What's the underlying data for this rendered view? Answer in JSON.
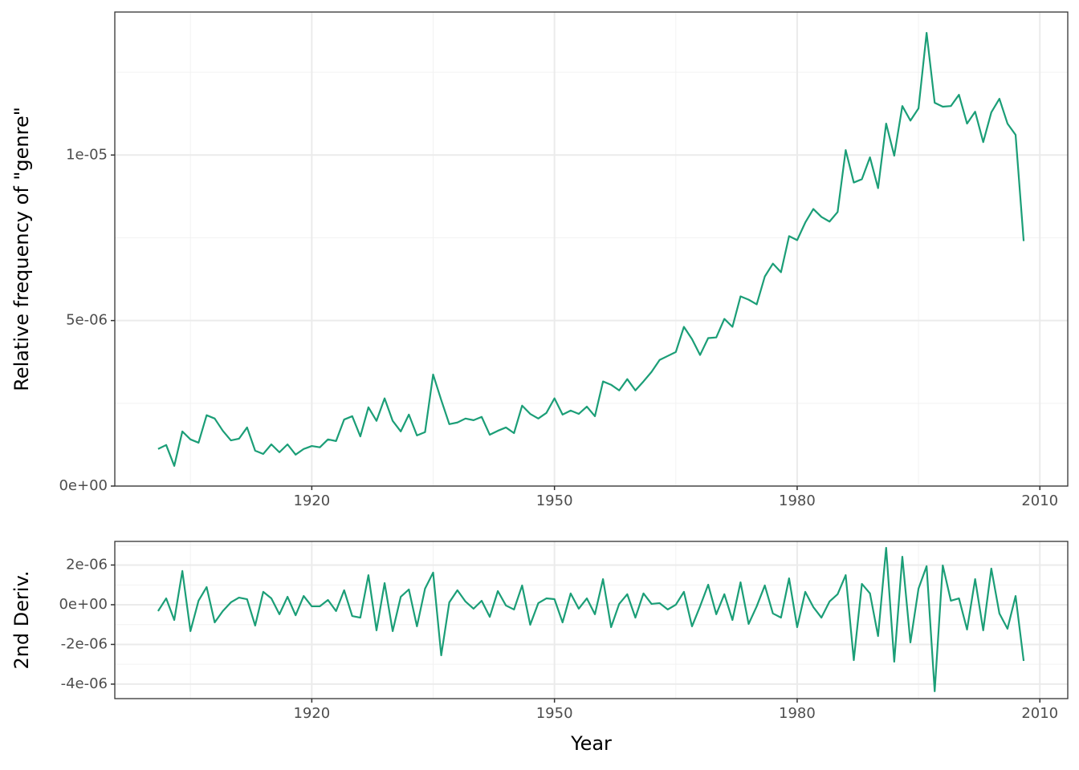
{
  "chart_data": [
    {
      "type": "line",
      "ylabel": "Relative frequency of \"genre\"",
      "x": [
        1901,
        1902,
        1903,
        1904,
        1905,
        1906,
        1907,
        1908,
        1909,
        1910,
        1911,
        1912,
        1913,
        1914,
        1915,
        1916,
        1917,
        1918,
        1919,
        1920,
        1921,
        1922,
        1923,
        1924,
        1925,
        1926,
        1927,
        1928,
        1929,
        1930,
        1931,
        1932,
        1933,
        1934,
        1935,
        1936,
        1937,
        1938,
        1939,
        1940,
        1941,
        1942,
        1943,
        1944,
        1945,
        1946,
        1947,
        1948,
        1949,
        1950,
        1951,
        1952,
        1953,
        1954,
        1955,
        1956,
        1957,
        1958,
        1959,
        1960,
        1961,
        1962,
        1963,
        1964,
        1965,
        1966,
        1967,
        1968,
        1969,
        1970,
        1971,
        1972,
        1973,
        1974,
        1975,
        1976,
        1977,
        1978,
        1979,
        1980,
        1981,
        1982,
        1983,
        1984,
        1985,
        1986,
        1987,
        1988,
        1989,
        1990,
        1991,
        1992,
        1993,
        1994,
        1995,
        1996,
        1997,
        1998,
        1999,
        2000,
        2001,
        2002,
        2003,
        2004,
        2005,
        2006,
        2007,
        2008
      ],
      "series": [
        {
          "color": "#1b9e77",
          "values": [
            1.12e-06,
            1.24e-06,
            6.1e-07,
            1.65e-06,
            1.41e-06,
            1.31e-06,
            2.14e-06,
            2.04e-06,
            1.67e-06,
            1.38e-06,
            1.43e-06,
            1.77e-06,
            1.07e-06,
            9.7e-07,
            1.26e-06,
            1.02e-06,
            1.26e-06,
            9.5e-07,
            1.12e-06,
            1.21e-06,
            1.17e-06,
            1.41e-06,
            1.36e-06,
            2.01e-06,
            2.11e-06,
            1.5e-06,
            2.38e-06,
            1.97e-06,
            2.65e-06,
            1.97e-06,
            1.65e-06,
            2.16e-06,
            1.53e-06,
            1.63e-06,
            3.37e-06,
            2.6e-06,
            1.87e-06,
            1.92e-06,
            2.04e-06,
            1.99e-06,
            2.09e-06,
            1.55e-06,
            1.67e-06,
            1.77e-06,
            1.6e-06,
            2.43e-06,
            2.18e-06,
            2.04e-06,
            2.21e-06,
            2.65e-06,
            2.16e-06,
            2.28e-06,
            2.18e-06,
            2.4e-06,
            2.11e-06,
            3.16e-06,
            3.06e-06,
            2.89e-06,
            3.23e-06,
            2.89e-06,
            3.16e-06,
            3.45e-06,
            3.81e-06,
            3.93e-06,
            4.05e-06,
            4.81e-06,
            4.44e-06,
            3.96e-06,
            4.47e-06,
            4.49e-06,
            5.05e-06,
            4.81e-06,
            5.73e-06,
            5.63e-06,
            5.49e-06,
            6.33e-06,
            6.72e-06,
            6.46e-06,
            7.55e-06,
            7.43e-06,
            7.96e-06,
            8.37e-06,
            8.13e-06,
            7.99e-06,
            8.28e-06,
            1.015e-05,
            9.17e-06,
            9.27e-06,
            9.93e-06,
            9e-06,
            1.095e-05,
            9.98e-06,
            1.148e-05,
            1.104e-05,
            1.141e-05,
            1.369e-05,
            1.158e-05,
            1.146e-05,
            1.148e-05,
            1.182e-05,
            1.095e-05,
            1.131e-05,
            1.039e-05,
            1.129e-05,
            1.17e-05,
            1.095e-05,
            1.061e-05,
            7.4e-06
          ]
        }
      ],
      "xlim": [
        1895.65,
        2013.45
      ],
      "xticks": [
        1920,
        1950,
        1980,
        2010
      ],
      "xminor": [
        1905,
        1935,
        1965,
        1995
      ],
      "ylim": [
        0,
        1.432e-05
      ],
      "yticks": [
        {
          "value": 0,
          "label": "0e+00"
        },
        {
          "value": 5e-06,
          "label": "5e-06"
        },
        {
          "value": 1e-05,
          "label": "1e-05"
        }
      ],
      "yminor": [
        2.5e-06,
        7.5e-06,
        1.25e-05
      ],
      "grid": true
    },
    {
      "type": "line",
      "xlabel": "Year",
      "ylabel": "2nd Deriv.",
      "x": [
        1901,
        1902,
        1903,
        1904,
        1905,
        1906,
        1907,
        1908,
        1909,
        1910,
        1911,
        1912,
        1913,
        1914,
        1915,
        1916,
        1917,
        1918,
        1919,
        1920,
        1921,
        1922,
        1923,
        1924,
        1925,
        1926,
        1927,
        1928,
        1929,
        1930,
        1931,
        1932,
        1933,
        1934,
        1935,
        1936,
        1937,
        1938,
        1939,
        1940,
        1941,
        1942,
        1943,
        1944,
        1945,
        1946,
        1947,
        1948,
        1949,
        1950,
        1951,
        1952,
        1953,
        1954,
        1955,
        1956,
        1957,
        1958,
        1959,
        1960,
        1961,
        1962,
        1963,
        1964,
        1965,
        1966,
        1967,
        1968,
        1969,
        1970,
        1971,
        1972,
        1973,
        1974,
        1975,
        1976,
        1977,
        1978,
        1979,
        1980,
        1981,
        1982,
        1983,
        1984,
        1985,
        1986,
        1987,
        1988,
        1989,
        1990,
        1991,
        1992,
        1993,
        1994,
        1995,
        1996,
        1997,
        1998,
        1999,
        2000,
        2001,
        2002,
        2003,
        2004,
        2005,
        2006,
        2007,
        2008
      ],
      "series": [
        {
          "color": "#1b9e77",
          "values": [
            -3.2e-07,
            3.2e-07,
            -7.7e-07,
            1.7e-06,
            -1.33e-06,
            2e-07,
            8.9e-07,
            -8.9e-07,
            -3.2e-07,
            1.2e-07,
            3.6e-07,
            2.8e-07,
            -1.05e-06,
            6.5e-07,
            3.2e-07,
            -4.8e-07,
            4e-07,
            -5.3e-07,
            4.4e-07,
            -8e-08,
            -8e-08,
            2.4e-07,
            -3.2e-07,
            7.3e-07,
            -5.7e-07,
            -6.5e-07,
            1.49e-06,
            -1.29e-06,
            1.09e-06,
            -1.33e-06,
            4e-07,
            7.7e-07,
            -1.09e-06,
            8.1e-07,
            1.62e-06,
            -2.55e-06,
            1.2e-07,
            7.3e-07,
            1.6e-07,
            -2e-07,
            2e-07,
            -6.1e-07,
            6.9e-07,
            -4e-08,
            -2.4e-07,
            9.7e-07,
            -1.01e-06,
            8e-08,
            3.2e-07,
            2.8e-07,
            -8.9e-07,
            5.7e-07,
            -2e-07,
            3.2e-07,
            -4.8e-07,
            1.29e-06,
            -1.13e-06,
            4e-08,
            5.3e-07,
            -6.5e-07,
            5.7e-07,
            4e-08,
            8e-08,
            -2.4e-07,
            0,
            6.5e-07,
            -1.09e-06,
            -8e-08,
            1.01e-06,
            -4.8e-07,
            5.3e-07,
            -7.7e-07,
            1.13e-06,
            -9.7e-07,
            -8e-08,
            9.7e-07,
            -4.4e-07,
            -6.5e-07,
            1.33e-06,
            -1.13e-06,
            6.5e-07,
            -1.2e-07,
            -6.5e-07,
            1.6e-07,
            5.3e-07,
            1.49e-06,
            -2.79e-06,
            1.05e-06,
            5.7e-07,
            -1.58e-06,
            2.87e-06,
            -2.87e-06,
            2.42e-06,
            -1.9e-06,
            8.1e-07,
            1.94e-06,
            -4.36e-06,
            1.98e-06,
            2e-07,
            3.2e-07,
            -1.25e-06,
            1.29e-06,
            -1.29e-06,
            1.82e-06,
            -4.4e-07,
            -1.21e-06,
            4.4e-07,
            -2.83e-06
          ]
        }
      ],
      "xlim": [
        1895.65,
        2013.45
      ],
      "xticks": [
        1920,
        1950,
        1980,
        2010
      ],
      "xminor": [
        1905,
        1935,
        1965,
        1995
      ],
      "ylim": [
        -4.73e-06,
        3.19e-06
      ],
      "yticks": [
        {
          "value": 2e-06,
          "label": "2e-06"
        },
        {
          "value": 0,
          "label": "0e+00"
        },
        {
          "value": -2e-06,
          "label": "-2e-06"
        },
        {
          "value": -4e-06,
          "label": "-4e-06"
        }
      ],
      "yminor": [
        3e-06,
        1e-06,
        -1e-06,
        -3e-06
      ],
      "grid": true
    }
  ]
}
